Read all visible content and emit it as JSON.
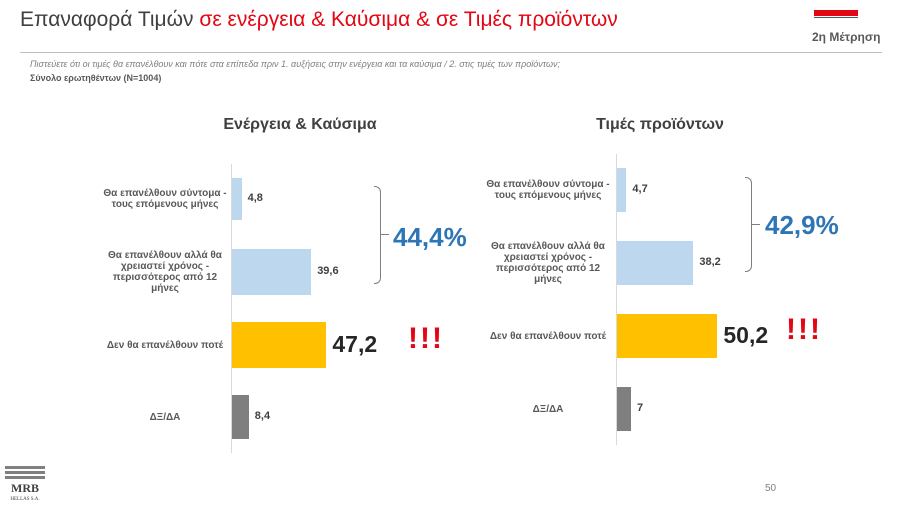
{
  "header": {
    "title_plain": "Επαναφορά Τιμών ",
    "title_highlight": "σε ενέργεια & Καύσιμα  & σε Τιμές προϊόντων",
    "measurement": "2η Μέτρηση",
    "question": "Πιστεύετε ότι οι τιμές θα επανέλθουν και πότε στα επίπεδα πριν 1. αυξήσεις στην ενέργεια και τα καύσιμα / 2. στις τιμές των προϊόντων;",
    "base": "Σύνολο ερωτηθέντων (N=1004)"
  },
  "colors": {
    "title_highlight": "#e30613",
    "light_blue": "#bdd7ee",
    "yellow": "#ffc000",
    "gray": "#7f7f7f",
    "sum_blue": "#2e75b6",
    "exclamation": "#e30613"
  },
  "chart_data": [
    {
      "type": "bar",
      "orientation": "horizontal",
      "title": "Ενέργεια & Καύσιμα",
      "categories": [
        "Θα επανέλθουν σύντομα - τους επόμενους μήνες",
        "Θα επανέλθουν αλλά θα χρειαστεί χρόνος - περισσότερος από 12 μήνες",
        "Δεν θα επανέλθουν ποτέ",
        "ΔΞ/ΔΑ"
      ],
      "values": [
        4.8,
        39.6,
        47.2,
        8.4
      ],
      "value_labels": [
        "4,8",
        "39,6",
        "47,2",
        "8,4"
      ],
      "bar_colors": [
        "#bdd7ee",
        "#bdd7ee",
        "#ffc000",
        "#7f7f7f"
      ],
      "bracket_sum": "44,4%",
      "annotation": "!!!"
    },
    {
      "type": "bar",
      "orientation": "horizontal",
      "title": "Τιμές προϊόντων",
      "categories": [
        "Θα επανέλθουν σύντομα - τους επόμενους μήνες",
        "Θα επανέλθουν αλλά θα χρειαστεί χρόνος - περισσότερος από 12 μήνες",
        "Δεν θα επανέλθουν ποτέ",
        "ΔΞ/ΔΑ"
      ],
      "values": [
        4.7,
        38.2,
        50.2,
        7
      ],
      "value_labels": [
        "4,7",
        "38,2",
        "50,2",
        "7"
      ],
      "bar_colors": [
        "#bdd7ee",
        "#bdd7ee",
        "#ffc000",
        "#7f7f7f"
      ],
      "bracket_sum": "42,9%",
      "annotation": "!!!"
    }
  ],
  "footer": {
    "page_number": "50",
    "logo_name": "MRB",
    "logo_sub": "HELLAS S.A."
  }
}
